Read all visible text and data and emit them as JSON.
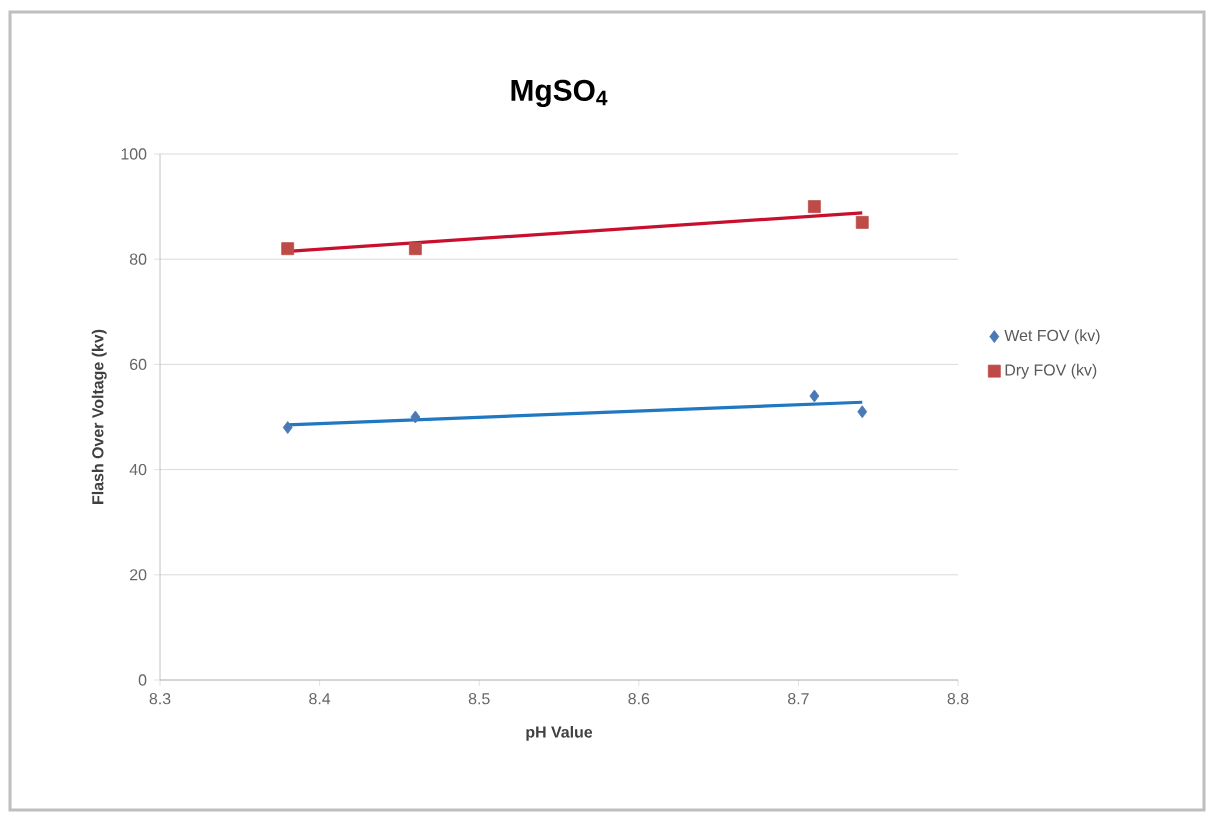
{
  "chart_data": {
    "type": "scatter",
    "title": "MgSO$_{4}$",
    "xlabel": "pH Value",
    "ylabel": "Flash Over Voltage (kv)",
    "xlim": [
      8.3,
      8.8
    ],
    "xticks": [
      8.3,
      8.4,
      8.5,
      8.6,
      8.7,
      8.8
    ],
    "ylim": [
      0,
      100
    ],
    "yticks": [
      0,
      20,
      40,
      60,
      80,
      100
    ],
    "grid": "y",
    "legend": "right",
    "series": [
      {
        "name": "Wet FOV (kv)",
        "marker": "diamond",
        "color": "#4a7ab5",
        "x": [
          8.38,
          8.46,
          8.71,
          8.74
        ],
        "values": [
          48,
          50,
          54,
          51
        ]
      },
      {
        "name": "Dry FOV (kv)",
        "marker": "square",
        "color": "#be4b48",
        "x": [
          8.38,
          8.46,
          8.71,
          8.74
        ],
        "values": [
          82,
          82,
          90,
          87
        ]
      },
      {
        "type": "line",
        "marker": "none",
        "color": "#1f78c1",
        "x": [
          8.38,
          8.74
        ],
        "values": [
          48.5,
          52.8
        ]
      },
      {
        "type": "line",
        "marker": "none",
        "color": "#c8102e",
        "x": [
          8.38,
          8.74
        ],
        "values": [
          81.5,
          88.8
        ]
      }
    ]
  }
}
